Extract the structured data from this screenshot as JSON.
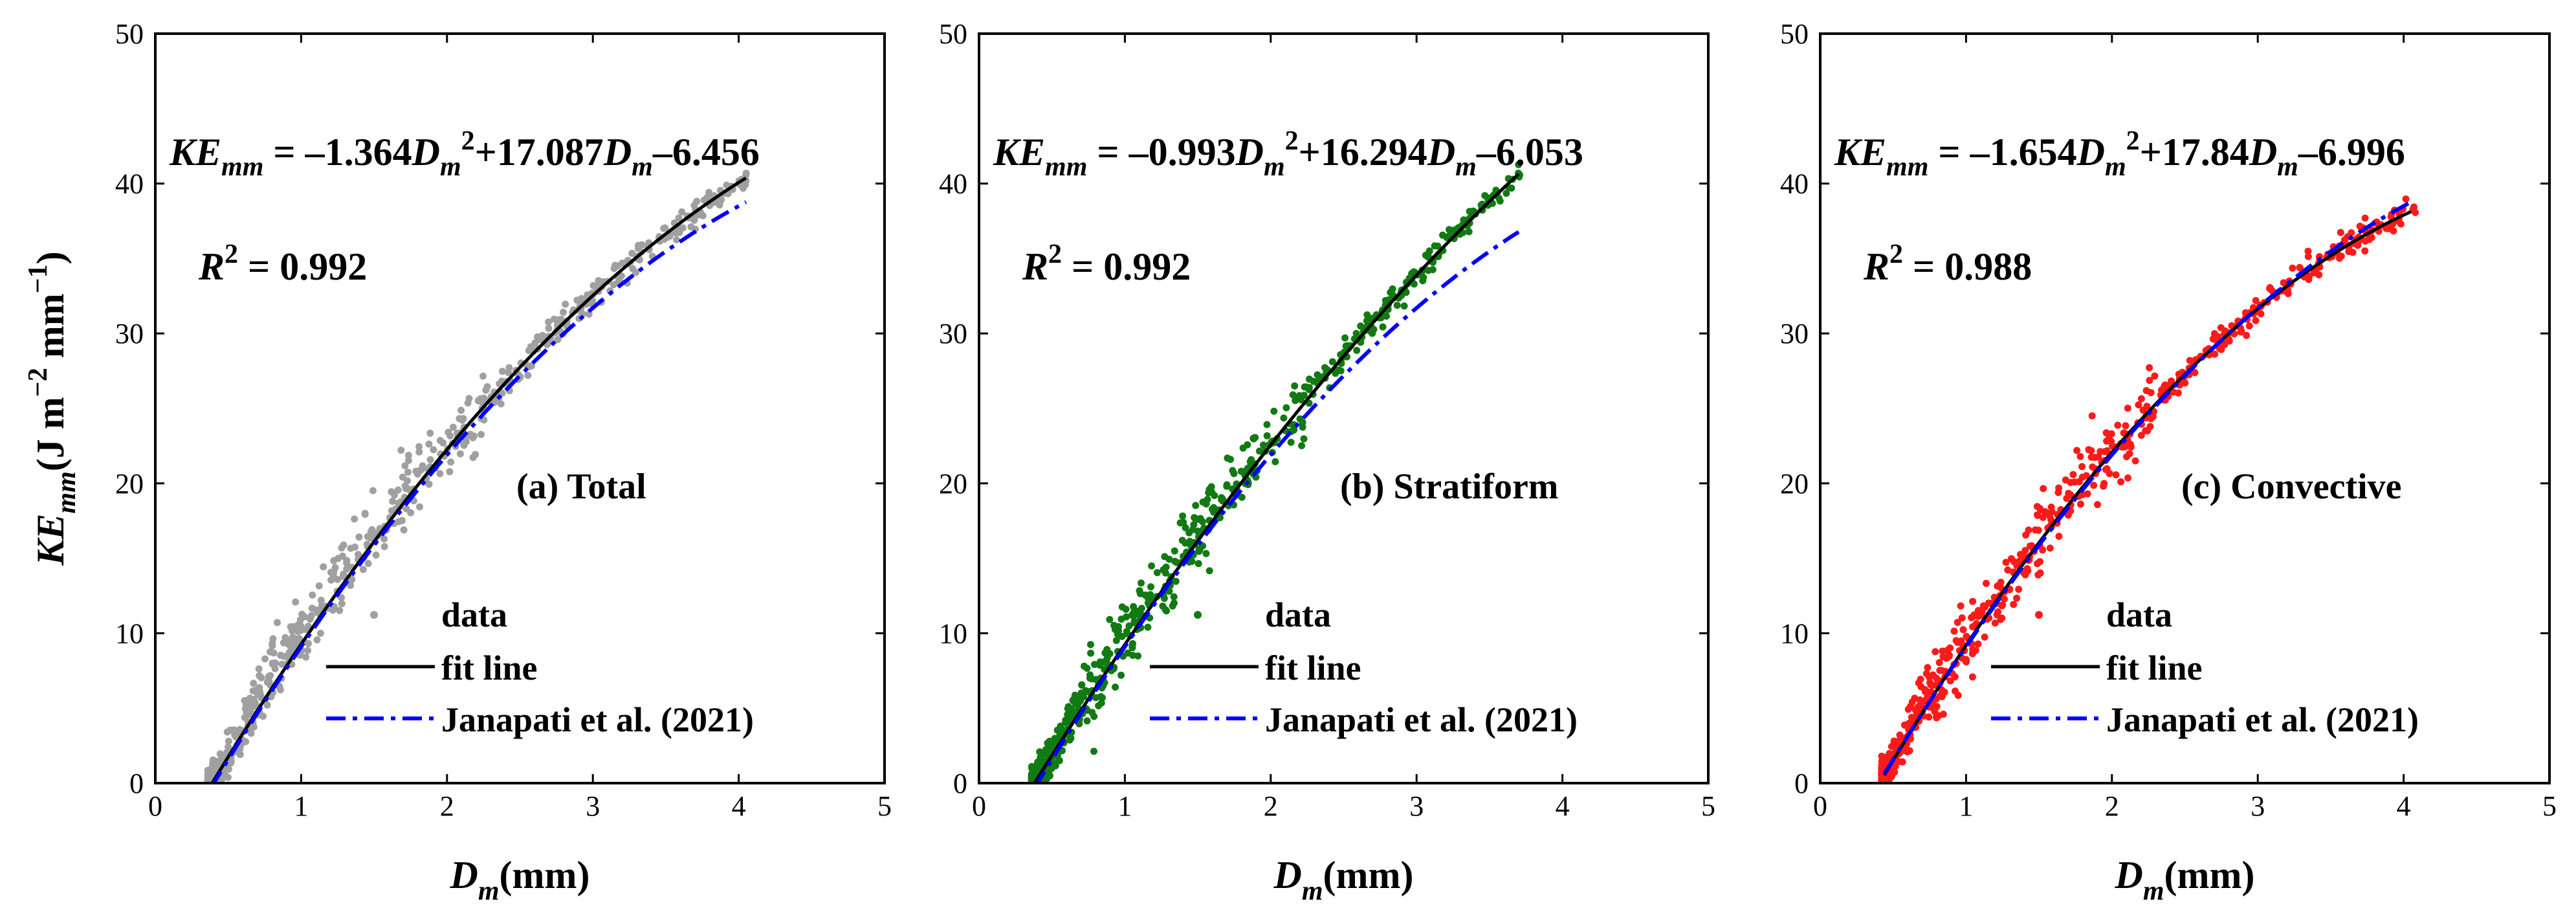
{
  "chart_data": {
    "type": "scatter",
    "x_axis": {
      "label": "D",
      "sub": "m",
      "unit": "(mm)",
      "range": [
        0,
        5
      ],
      "ticks": [
        "0",
        "1",
        "2",
        "3",
        "4",
        "5"
      ]
    },
    "y_axis": {
      "label": "KE",
      "sub": "mm",
      "unit_pre": "(J m",
      "sup1": "−2",
      "unit_mid": " mm",
      "sup2": "−1",
      "unit_post": ")",
      "range": [
        0,
        50
      ],
      "ticks": [
        "0",
        "10",
        "20",
        "30",
        "40",
        "50"
      ]
    },
    "legend": {
      "data": "data",
      "fit": "fit line",
      "janapati": "Janapati et al. (2021)"
    },
    "janapati_coeffs": {
      "a": -1.5,
      "b": 17.3,
      "c": -6.7
    },
    "panels": [
      {
        "id": "a",
        "label": "(a) Total",
        "color": "#a0a0a0",
        "equation": {
          "lhs": "KE",
          "lhs_sub": "mm",
          "eq_part1": " = –1.364",
          "var1": "D",
          "var1_sub": "m",
          "var1_sup": "2",
          "eq_part2": "+17.087",
          "var2": "D",
          "var2_sub": "m",
          "eq_part3": "–6.456"
        },
        "r2": {
          "label": "R",
          "sup": "2",
          "value": " = 0.992"
        },
        "fit": {
          "a": -1.364,
          "b": 17.087,
          "c": -6.456,
          "x_range": [
            0.38,
            4.05
          ]
        },
        "janapati_x_range": [
          0.38,
          4.05
        ],
        "scatter": {
          "x_min": 0.36,
          "x_max": 4.08,
          "n": 650
        }
      },
      {
        "id": "b",
        "label": "(b) Stratiform",
        "color": "#127a12",
        "equation": {
          "lhs": "KE",
          "lhs_sub": "mm",
          "eq_part1": " = –0.993",
          "var1": "D",
          "var1_sub": "m",
          "var1_sup": "2",
          "eq_part2": "+16.294",
          "var2": "D",
          "var2_sub": "m",
          "eq_part3": "–6.053"
        },
        "r2": {
          "label": "R",
          "sup": "2",
          "value": " = 0.992"
        },
        "fit": {
          "a": -0.993,
          "b": 16.294,
          "c": -6.053,
          "x_range": [
            0.38,
            3.7
          ]
        },
        "janapati_x_range": [
          0.38,
          3.7
        ],
        "scatter": {
          "x_min": 0.36,
          "x_max": 3.72,
          "n": 650
        }
      },
      {
        "id": "c",
        "label": "(c) Convective",
        "color": "#ff1a1a",
        "equation": {
          "lhs": "KE",
          "lhs_sub": "mm",
          "eq_part1": " = –1.654",
          "var1": "D",
          "var1_sub": "m",
          "var1_sup": "2",
          "eq_part2": "+17.84",
          "var2": "D",
          "var2_sub": "m",
          "eq_part3": "–6.996"
        },
        "r2": {
          "label": "R",
          "sup": "2",
          "value": " = 0.988"
        },
        "fit": {
          "a": -1.654,
          "b": 17.84,
          "c": -6.996,
          "x_range": [
            0.44,
            4.05
          ]
        },
        "janapati_x_range": [
          0.44,
          4.05
        ],
        "scatter": {
          "x_min": 0.42,
          "x_max": 4.08,
          "n": 650
        }
      }
    ]
  }
}
